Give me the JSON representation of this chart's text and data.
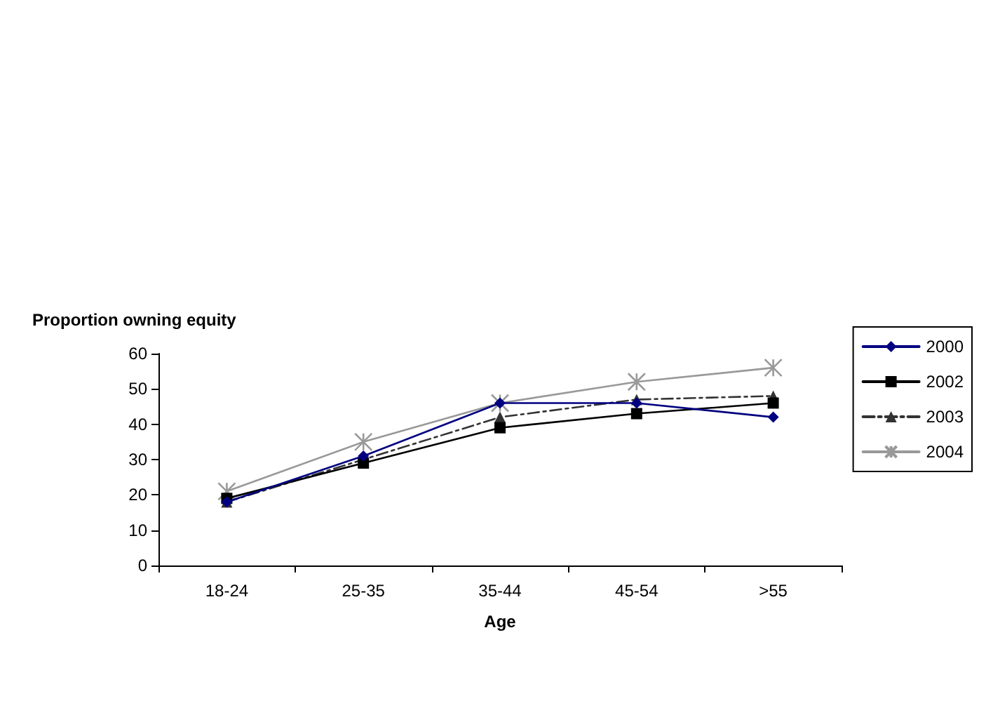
{
  "chart_data": {
    "type": "line",
    "ylabel": "Proportion owning equity",
    "xlabel": "Age",
    "categories": [
      "18-24",
      "25-35",
      "35-44",
      "45-54",
      ">55"
    ],
    "ylim": [
      0,
      60
    ],
    "yticks": [
      0,
      10,
      20,
      30,
      40,
      50,
      60
    ],
    "grid": false,
    "legend": "right",
    "series": [
      {
        "name": "2000",
        "color": "#000080",
        "marker": "diamond",
        "line_style": "solid",
        "values": [
          18,
          31,
          46,
          46,
          42
        ]
      },
      {
        "name": "2002",
        "color": "#000000",
        "marker": "square",
        "line_style": "solid",
        "values": [
          19,
          29,
          39,
          43,
          46
        ]
      },
      {
        "name": "2003",
        "color": "#333333",
        "marker": "triangle",
        "line_style": "dashed",
        "values": [
          18,
          30,
          42,
          47,
          48
        ]
      },
      {
        "name": "2004",
        "color": "#999999",
        "marker": "cross",
        "line_style": "solid",
        "values": [
          21,
          35,
          46,
          52,
          56
        ]
      }
    ]
  }
}
